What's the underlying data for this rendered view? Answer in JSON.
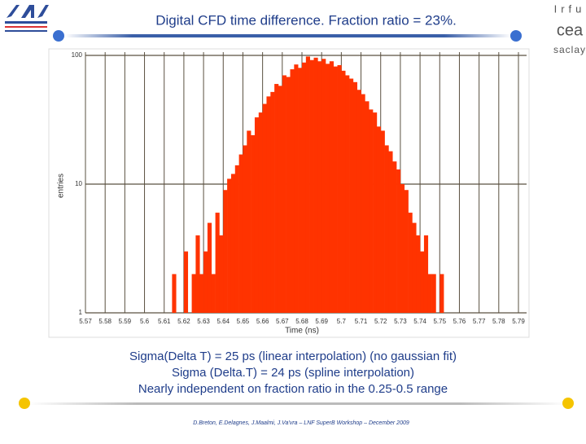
{
  "slide": {
    "title": "Digital CFD time difference. Fraction ratio = 23%.",
    "notes": [
      "Sigma(Delta T) = 25 ps (linear interpolation) (no gaussian fit)",
      "Sigma (Delta.T) = 24 ps (spline interpolation)",
      "Nearly independent on fraction ratio in the 0.25-0.5 range"
    ],
    "footer": "D.Breton, E.Delagnes, J.Maalmi, J.Va'vra – LNF SuperB Workshop – December 2009",
    "logo_text": [
      "Irfu",
      "cea",
      "saclay"
    ]
  },
  "chart_data": {
    "type": "histogram",
    "xlabel": "Time (ns)",
    "ylabel": "entries",
    "color": "#ff3300",
    "bins": [
      5.58,
      5.582,
      5.584,
      5.586,
      5.588,
      5.59,
      5.592,
      5.594,
      5.596,
      5.598,
      5.6,
      5.602,
      5.604,
      5.606,
      5.608,
      5.61,
      5.612,
      5.614,
      5.616,
      5.618,
      5.62,
      5.622,
      5.624,
      5.626,
      5.628,
      5.63,
      5.632,
      5.634,
      5.636,
      5.638,
      5.64,
      5.642,
      5.644,
      5.646,
      5.648,
      5.65,
      5.652,
      5.654,
      5.656,
      5.658,
      5.66,
      5.662,
      5.664,
      5.666,
      5.668,
      5.67,
      5.672,
      5.674,
      5.676,
      5.678,
      5.68,
      5.682,
      5.684,
      5.686,
      5.688,
      5.69,
      5.692,
      5.694,
      5.696,
      5.698,
      5.7,
      5.702,
      5.704,
      5.706,
      5.708,
      5.71,
      5.712,
      5.714,
      5.716,
      5.718,
      5.72,
      5.722,
      5.724,
      5.726,
      5.728,
      5.73,
      5.732,
      5.734,
      5.736,
      5.738,
      5.74,
      5.742,
      5.744,
      5.746,
      5.748,
      5.75,
      5.752,
      5.754,
      5.756,
      5.758,
      5.76,
      5.762,
      5.764,
      5.766,
      5.768,
      5.77,
      5.772,
      5.774,
      5.776,
      5.778,
      5.78
    ],
    "values": [
      0,
      0,
      1,
      0,
      0,
      0,
      1,
      0,
      0,
      1,
      0,
      0,
      1,
      0,
      0,
      1,
      0,
      2,
      0,
      1,
      3,
      1,
      2,
      4,
      2,
      3,
      5,
      2,
      6,
      4,
      9,
      11,
      12,
      14,
      17,
      20,
      26,
      24,
      33,
      36,
      42,
      48,
      52,
      60,
      58,
      70,
      68,
      78,
      85,
      80,
      88,
      98,
      92,
      96,
      90,
      94,
      86,
      90,
      82,
      84,
      76,
      70,
      66,
      62,
      54,
      50,
      44,
      38,
      36,
      28,
      26,
      20,
      18,
      15,
      13,
      10,
      9,
      6,
      5,
      4,
      3,
      4,
      2,
      2,
      1,
      2,
      1,
      0,
      1,
      0,
      0,
      1,
      0,
      0,
      0,
      0,
      0,
      0,
      1,
      0
    ],
    "xlim": [
      5.57,
      5.79
    ],
    "xticks": [
      5.57,
      5.58,
      5.59,
      5.6,
      5.61,
      5.62,
      5.63,
      5.64,
      5.65,
      5.66,
      5.67,
      5.68,
      5.69,
      5.7,
      5.71,
      5.72,
      5.73,
      5.74,
      5.75,
      5.76,
      5.77,
      5.78,
      5.79
    ],
    "ylim": [
      1,
      100
    ],
    "yticks": [
      1,
      10,
      100
    ],
    "log_y": true,
    "grid": true
  }
}
